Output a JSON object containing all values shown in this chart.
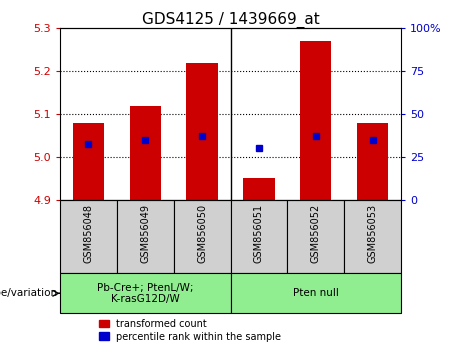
{
  "title": "GDS4125 / 1439669_at",
  "samples": [
    "GSM856048",
    "GSM856049",
    "GSM856050",
    "GSM856051",
    "GSM856052",
    "GSM856053"
  ],
  "red_values": [
    5.08,
    5.12,
    5.22,
    4.95,
    5.27,
    5.08
  ],
  "blue_values": [
    5.03,
    5.04,
    5.05,
    5.02,
    5.05,
    5.04
  ],
  "bar_base": 4.9,
  "ylim": [
    4.9,
    5.3
  ],
  "y2lim": [
    0,
    100
  ],
  "yticks": [
    4.9,
    5.0,
    5.1,
    5.2,
    5.3
  ],
  "y2ticks": [
    0,
    25,
    50,
    75,
    100
  ],
  "y2tick_labels": [
    "0",
    "25",
    "50",
    "75",
    "100%"
  ],
  "red_color": "#cc0000",
  "blue_color": "#0000cc",
  "genotype_label": "genotype/variation",
  "group_labels": [
    "Pb-Cre+; PtenL/W;\nK-rasG12D/W",
    "Pten null"
  ],
  "group_starts": [
    0,
    3
  ],
  "group_ends": [
    3,
    6
  ],
  "group_color": "#90ee90",
  "sample_box_color": "#d0d0d0",
  "legend_red": "transformed count",
  "legend_blue": "percentile rank within the sample",
  "left_tick_color": "#cc0000",
  "right_tick_color": "#0000cc",
  "title_fontsize": 11,
  "axis_tick_fontsize": 8,
  "sample_fontsize": 7,
  "bar_width": 0.55,
  "blue_markersize": 5
}
